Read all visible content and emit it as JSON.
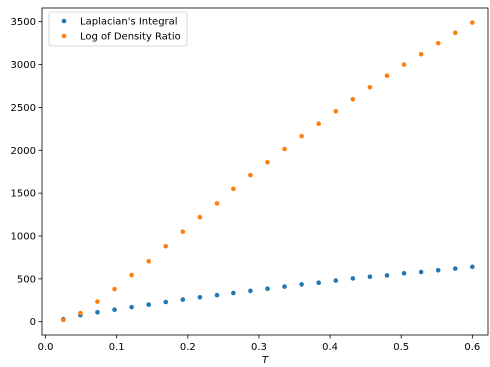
{
  "chart_data": {
    "type": "scatter",
    "title": "",
    "xlabel": "T",
    "ylabel": "",
    "xlim": [
      -0.005,
      0.622
    ],
    "ylim": [
      -155,
      3660
    ],
    "xticks": [
      0.0,
      0.1,
      0.2,
      0.3,
      0.4,
      0.5,
      0.6
    ],
    "xtick_labels": [
      "0.0",
      "0.1",
      "0.2",
      "0.3",
      "0.4",
      "0.5",
      "0.6"
    ],
    "yticks": [
      0,
      500,
      1000,
      1500,
      2000,
      2500,
      3000,
      3500
    ],
    "ytick_labels": [
      "0",
      "500",
      "1000",
      "1500",
      "2000",
      "2500",
      "3000",
      "3500"
    ],
    "grid": false,
    "legend_position": "top-left",
    "x": [
      0.025,
      0.049,
      0.073,
      0.097,
      0.121,
      0.145,
      0.169,
      0.193,
      0.217,
      0.241,
      0.264,
      0.288,
      0.312,
      0.336,
      0.36,
      0.384,
      0.408,
      0.432,
      0.456,
      0.48,
      0.504,
      0.528,
      0.552,
      0.576,
      0.6
    ],
    "series": [
      {
        "name": "Laplacian's Integral",
        "color": "#1f77b4",
        "values": [
          30,
          75,
          110,
          140,
          170,
          200,
          230,
          258,
          285,
          310,
          335,
          360,
          385,
          410,
          435,
          455,
          480,
          505,
          525,
          540,
          565,
          580,
          600,
          620,
          640
        ]
      },
      {
        "name": "Log of Density Ratio",
        "color": "#ff7f0e",
        "values": [
          20,
          100,
          235,
          380,
          545,
          705,
          880,
          1050,
          1220,
          1380,
          1550,
          1710,
          1860,
          2015,
          2165,
          2310,
          2455,
          2595,
          2735,
          2870,
          3000,
          3120,
          3250,
          3370,
          3490
        ]
      }
    ]
  }
}
